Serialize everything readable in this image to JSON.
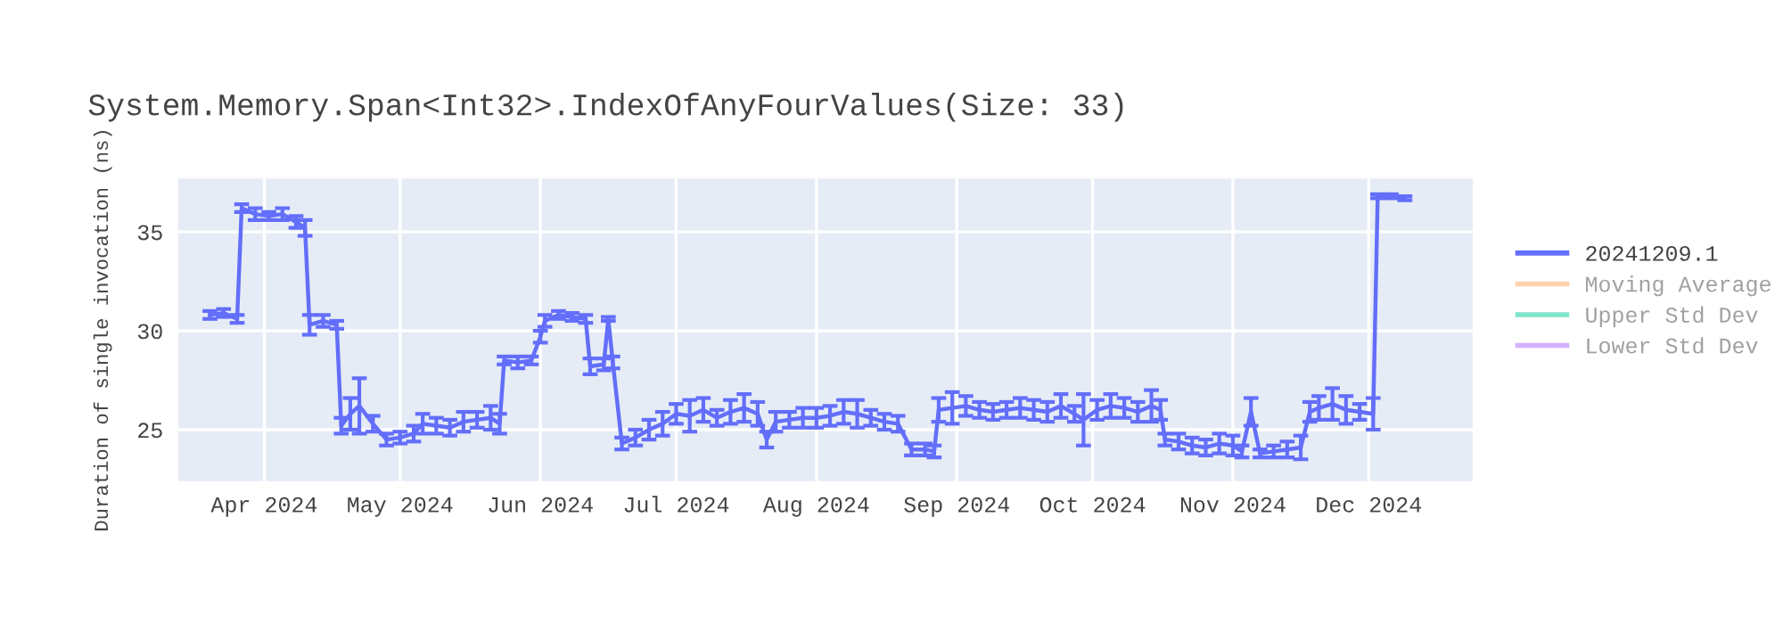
{
  "chart_data": {
    "type": "line",
    "title": "System.Memory.Span<Int32>.IndexOfAnyFourValues(Size: 33)",
    "ylabel": "Duration of single invocation (ns)",
    "xlim": [
      "2024-03-13",
      "2024-12-24"
    ],
    "ylim": [
      22.4,
      37.7
    ],
    "yticks": [
      25,
      30,
      35
    ],
    "xticks": [
      {
        "value": "2024-04-01",
        "label": "Apr 2024"
      },
      {
        "value": "2024-05-01",
        "label": "May 2024"
      },
      {
        "value": "2024-06-01",
        "label": "Jun 2024"
      },
      {
        "value": "2024-07-01",
        "label": "Jul 2024"
      },
      {
        "value": "2024-08-01",
        "label": "Aug 2024"
      },
      {
        "value": "2024-09-01",
        "label": "Sep 2024"
      },
      {
        "value": "2024-10-01",
        "label": "Oct 2024"
      },
      {
        "value": "2024-11-01",
        "label": "Nov 2024"
      },
      {
        "value": "2024-12-01",
        "label": "Dec 2024"
      }
    ],
    "grid": true,
    "legend": "top right",
    "marker": "none",
    "line_style": "solid",
    "x": [
      "2024-03-20",
      "2024-03-23",
      "2024-03-26",
      "2024-03-27",
      "2024-03-30",
      "2024-04-02",
      "2024-04-05",
      "2024-04-08",
      "2024-04-10",
      "2024-04-11",
      "2024-04-14",
      "2024-04-17",
      "2024-04-18",
      "2024-04-20",
      "2024-04-22",
      "2024-04-25",
      "2024-04-28",
      "2024-05-01",
      "2024-05-04",
      "2024-05-06",
      "2024-05-09",
      "2024-05-12",
      "2024-05-15",
      "2024-05-18",
      "2024-05-21",
      "2024-05-23",
      "2024-05-24",
      "2024-05-27",
      "2024-05-30",
      "2024-06-01",
      "2024-06-02",
      "2024-06-05",
      "2024-06-08",
      "2024-06-11",
      "2024-06-12",
      "2024-06-15",
      "2024-06-16",
      "2024-06-17",
      "2024-06-19",
      "2024-06-22",
      "2024-06-25",
      "2024-06-28",
      "2024-07-01",
      "2024-07-04",
      "2024-07-07",
      "2024-07-10",
      "2024-07-13",
      "2024-07-16",
      "2024-07-19",
      "2024-07-21",
      "2024-07-23",
      "2024-07-26",
      "2024-07-29",
      "2024-08-01",
      "2024-08-04",
      "2024-08-07",
      "2024-08-10",
      "2024-08-13",
      "2024-08-16",
      "2024-08-19",
      "2024-08-22",
      "2024-08-25",
      "2024-08-27",
      "2024-08-28",
      "2024-08-31",
      "2024-09-03",
      "2024-09-06",
      "2024-09-09",
      "2024-09-12",
      "2024-09-15",
      "2024-09-18",
      "2024-09-21",
      "2024-09-24",
      "2024-09-27",
      "2024-09-29",
      "2024-10-02",
      "2024-10-05",
      "2024-10-08",
      "2024-10-11",
      "2024-10-14",
      "2024-10-16",
      "2024-10-17",
      "2024-10-20",
      "2024-10-23",
      "2024-10-26",
      "2024-10-29",
      "2024-11-01",
      "2024-11-03",
      "2024-11-05",
      "2024-11-07",
      "2024-11-10",
      "2024-11-13",
      "2024-11-16",
      "2024-11-18",
      "2024-11-20",
      "2024-11-23",
      "2024-11-26",
      "2024-11-29",
      "2024-12-02",
      "2024-12-03",
      "2024-12-06",
      "2024-12-09"
    ],
    "series": [
      {
        "name": "20241209.1",
        "color": "#636efa",
        "values": [
          30.8,
          30.9,
          30.6,
          36.2,
          35.9,
          35.8,
          35.9,
          35.5,
          35.2,
          30.3,
          30.5,
          30.3,
          25.2,
          25.8,
          26.2,
          25.3,
          24.5,
          24.6,
          24.8,
          25.3,
          25.2,
          25.1,
          25.4,
          25.5,
          25.6,
          25.3,
          28.5,
          28.4,
          28.5,
          29.7,
          30.5,
          30.8,
          30.7,
          30.6,
          28.2,
          28.3,
          30.6,
          28.4,
          24.3,
          24.6,
          25.0,
          25.3,
          25.8,
          25.7,
          26.0,
          25.6,
          25.9,
          26.1,
          25.8,
          24.5,
          25.4,
          25.5,
          25.6,
          25.6,
          25.7,
          25.9,
          25.8,
          25.6,
          25.4,
          25.3,
          24.0,
          24.0,
          23.9,
          26.0,
          26.1,
          26.2,
          26.0,
          25.9,
          26.0,
          26.1,
          26.0,
          25.9,
          26.2,
          25.8,
          25.5,
          26.0,
          26.2,
          26.1,
          25.9,
          26.2,
          26.0,
          24.5,
          24.4,
          24.2,
          24.1,
          24.3,
          24.2,
          23.9,
          25.9,
          23.8,
          23.9,
          24.0,
          24.1,
          25.9,
          26.1,
          26.3,
          26.0,
          25.9,
          25.8,
          36.8,
          36.8,
          36.7
        ],
        "errors": [
          0.2,
          0.2,
          0.2,
          0.2,
          0.3,
          0.2,
          0.3,
          0.3,
          0.4,
          0.5,
          0.3,
          0.2,
          0.4,
          0.8,
          1.4,
          0.4,
          0.3,
          0.3,
          0.4,
          0.5,
          0.4,
          0.4,
          0.5,
          0.4,
          0.6,
          0.5,
          0.2,
          0.3,
          0.2,
          0.3,
          0.3,
          0.2,
          0.2,
          0.2,
          0.4,
          0.3,
          0.1,
          0.3,
          0.3,
          0.4,
          0.5,
          0.6,
          0.5,
          0.8,
          0.6,
          0.4,
          0.6,
          0.7,
          0.6,
          0.4,
          0.5,
          0.4,
          0.5,
          0.5,
          0.5,
          0.6,
          0.7,
          0.4,
          0.4,
          0.4,
          0.3,
          0.3,
          0.3,
          0.6,
          0.8,
          0.5,
          0.4,
          0.4,
          0.4,
          0.5,
          0.5,
          0.5,
          0.6,
          0.4,
          1.3,
          0.5,
          0.6,
          0.5,
          0.5,
          0.8,
          0.5,
          0.3,
          0.4,
          0.4,
          0.4,
          0.5,
          0.5,
          0.3,
          0.7,
          0.2,
          0.3,
          0.4,
          0.6,
          0.5,
          0.6,
          0.8,
          0.7,
          0.4,
          0.8,
          0.1,
          0.1,
          0.1
        ]
      },
      {
        "name": "Moving Average",
        "color": "#ffa15a",
        "values": [
          null,
          null,
          null,
          null,
          null,
          null,
          null,
          null,
          null,
          null,
          null,
          null,
          null,
          null,
          null,
          null,
          null,
          null,
          null,
          null,
          null,
          null,
          null,
          null,
          null,
          null,
          null,
          null,
          null,
          null,
          null,
          null,
          null,
          null,
          null,
          null,
          null,
          null,
          null,
          null,
          null,
          null,
          null,
          null,
          null,
          null,
          null,
          null,
          null,
          null,
          null,
          null,
          null,
          null,
          null,
          null,
          null,
          null,
          null,
          null,
          null,
          null,
          null,
          null,
          null,
          null,
          null,
          null,
          null,
          null,
          null,
          null,
          null,
          null,
          null,
          null,
          null,
          null,
          null,
          null,
          null,
          null,
          null,
          null,
          null,
          null,
          null,
          null,
          null,
          null,
          null,
          null,
          null,
          null,
          null,
          null,
          null,
          null,
          null,
          null,
          null,
          null
        ]
      },
      {
        "name": "Upper Std Dev",
        "color": "#00cc96",
        "values": [
          null,
          null,
          null,
          null,
          null,
          null,
          null,
          null,
          null,
          null,
          null,
          null,
          null,
          null,
          null,
          null,
          null,
          null,
          null,
          null,
          null,
          null,
          null,
          null,
          null,
          null,
          null,
          null,
          null,
          null,
          null,
          null,
          null,
          null,
          null,
          null,
          null,
          null,
          null,
          null,
          null,
          null,
          null,
          null,
          null,
          null,
          null,
          null,
          null,
          null,
          null,
          null,
          null,
          null,
          null,
          null,
          null,
          null,
          null,
          null,
          null,
          null,
          null,
          null,
          null,
          null,
          null,
          null,
          null,
          null,
          null,
          null,
          null,
          null,
          null,
          null,
          null,
          null,
          null,
          null,
          null,
          null,
          null,
          null,
          null,
          null,
          null,
          null,
          null,
          null,
          null,
          null,
          null,
          null,
          null,
          null,
          null,
          null,
          null,
          null,
          null,
          null
        ]
      },
      {
        "name": "Lower Std Dev",
        "color": "#ab63fa",
        "values": [
          null,
          null,
          null,
          null,
          null,
          null,
          null,
          null,
          null,
          null,
          null,
          null,
          null,
          null,
          null,
          null,
          null,
          null,
          null,
          null,
          null,
          null,
          null,
          null,
          null,
          null,
          null,
          null,
          null,
          null,
          null,
          null,
          null,
          null,
          null,
          null,
          null,
          null,
          null,
          null,
          null,
          null,
          null,
          null,
          null,
          null,
          null,
          null,
          null,
          null,
          null,
          null,
          null,
          null,
          null,
          null,
          null,
          null,
          null,
          null,
          null,
          null,
          null,
          null,
          null,
          null,
          null,
          null,
          null,
          null,
          null,
          null,
          null,
          null,
          null,
          null,
          null,
          null,
          null,
          null,
          null,
          null,
          null,
          null,
          null,
          null,
          null,
          null,
          null,
          null,
          null,
          null,
          null,
          null,
          null,
          null,
          null,
          null,
          null,
          null,
          null,
          null
        ]
      }
    ]
  }
}
